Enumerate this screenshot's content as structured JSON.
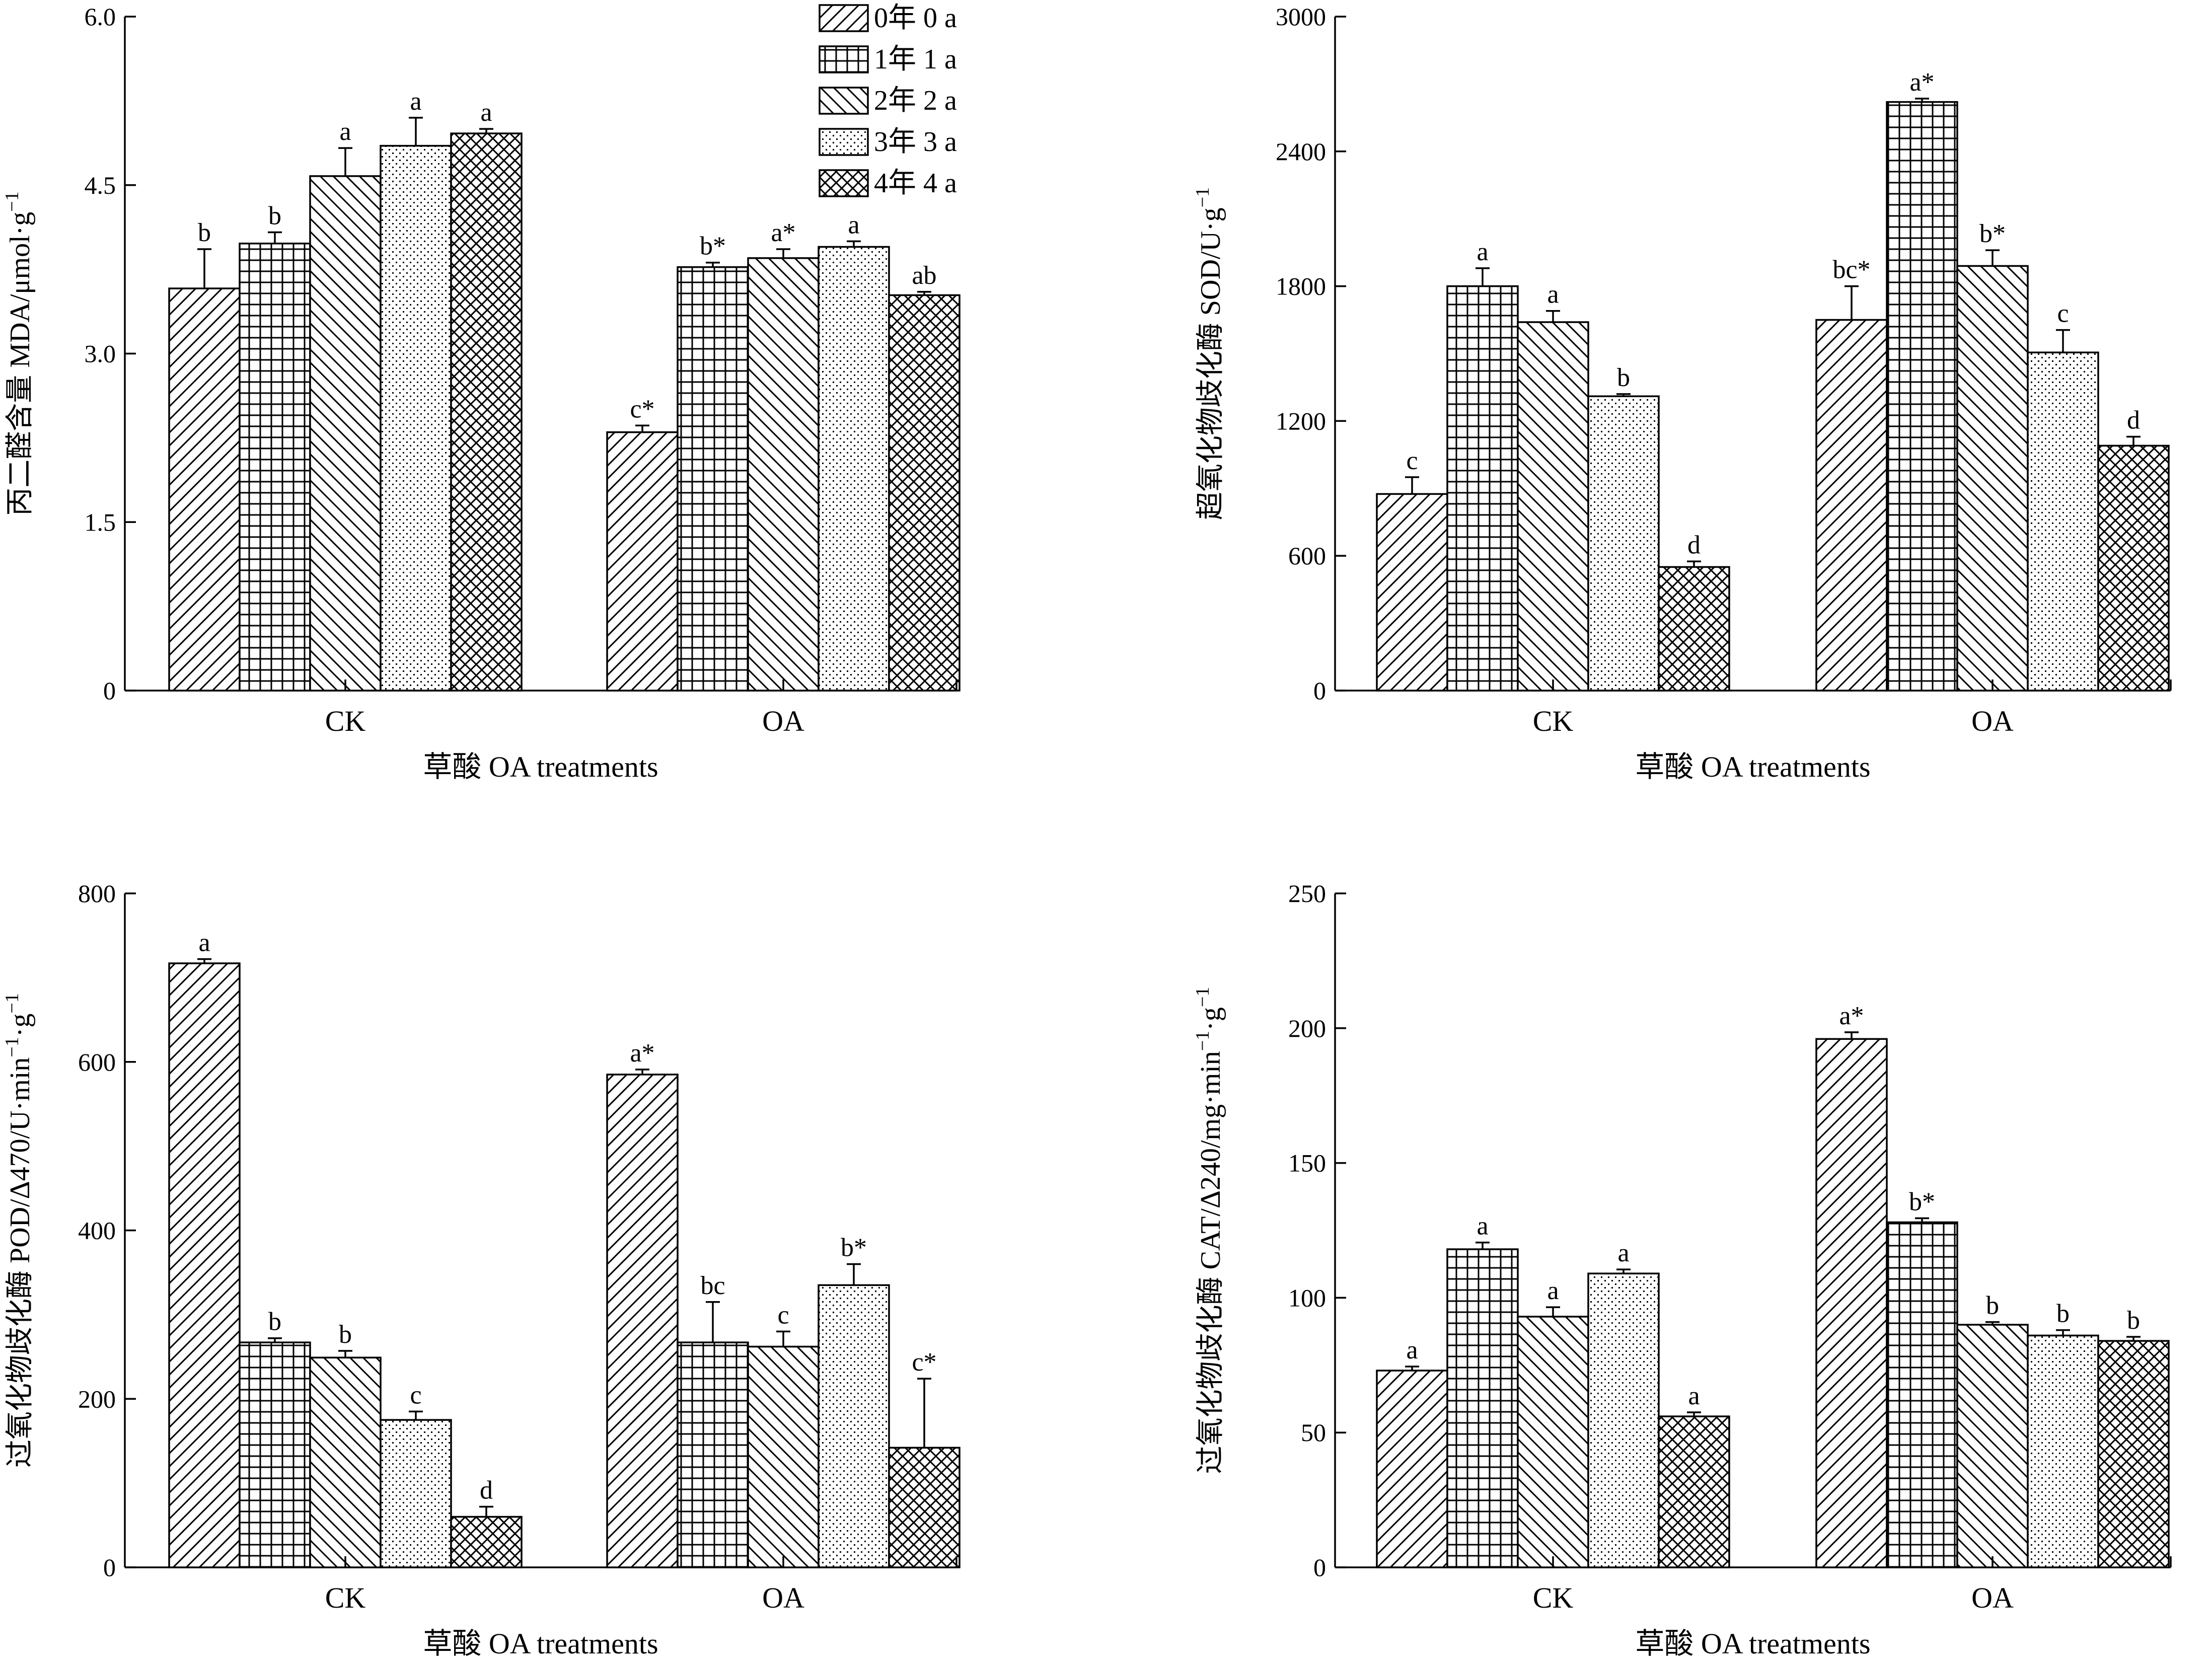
{
  "legend": {
    "items": [
      {
        "label": "0年 0 a",
        "pattern": "diag-up"
      },
      {
        "label": "1年 1 a",
        "pattern": "grid"
      },
      {
        "label": "2年 2 a",
        "pattern": "diag-down"
      },
      {
        "label": "3年 3 a",
        "pattern": "dots"
      },
      {
        "label": "4年 4 a",
        "pattern": "crosshatch"
      }
    ]
  },
  "chart_data": [
    {
      "id": "mda",
      "type": "bar",
      "title": "",
      "xlabel": "草酸 OA treatments",
      "ylabel": "丙二醛含量 MDA/μmol·g",
      "ylabel_sup": "−1",
      "categories": [
        "CK",
        "OA"
      ],
      "ylim": [
        0,
        6.0
      ],
      "yticks": [
        0,
        1.5,
        3.0,
        4.5,
        6.0
      ],
      "ytick_labels": [
        "0",
        "1.5",
        "3.0",
        "4.5",
        "6.0"
      ],
      "series": [
        {
          "name": "0年 0 a",
          "values": [
            3.58,
            2.3
          ],
          "errors": [
            0.35,
            0.06
          ],
          "labels": [
            "b",
            "c*"
          ]
        },
        {
          "name": "1年 1 a",
          "values": [
            3.98,
            3.77
          ],
          "errors": [
            0.1,
            0.04
          ],
          "labels": [
            "b",
            "b*"
          ]
        },
        {
          "name": "2年 2 a",
          "values": [
            4.58,
            3.85
          ],
          "errors": [
            0.25,
            0.08
          ],
          "labels": [
            "a",
            "a*"
          ]
        },
        {
          "name": "3年 3 a",
          "values": [
            4.85,
            3.95
          ],
          "errors": [
            0.25,
            0.05
          ],
          "labels": [
            "a",
            "a"
          ]
        },
        {
          "name": "4年 4 a",
          "values": [
            4.96,
            3.52
          ],
          "errors": [
            0.04,
            0.03
          ],
          "labels": [
            "a",
            "ab"
          ]
        }
      ]
    },
    {
      "id": "sod",
      "type": "bar",
      "title": "",
      "xlabel": "草酸 OA treatments",
      "ylabel": "超氧化物歧化酶 SOD/U·g",
      "ylabel_sup": "−1",
      "categories": [
        "CK",
        "OA"
      ],
      "ylim": [
        0,
        3000
      ],
      "yticks": [
        0,
        600,
        1200,
        1800,
        2400,
        3000
      ],
      "ytick_labels": [
        "0",
        "600",
        "1200",
        "1800",
        "2400",
        "3000"
      ],
      "series": [
        {
          "name": "0年 0 a",
          "values": [
            875,
            1650
          ],
          "errors": [
            75,
            150
          ],
          "labels": [
            "c",
            "bc*"
          ]
        },
        {
          "name": "1年 1 a",
          "values": [
            1800,
            2620
          ],
          "errors": [
            80,
            15
          ],
          "labels": [
            "a",
            "a*"
          ]
        },
        {
          "name": "2年 2 a",
          "values": [
            1640,
            1890
          ],
          "errors": [
            50,
            70
          ],
          "labels": [
            "a",
            "b*"
          ]
        },
        {
          "name": "3年 3 a",
          "values": [
            1310,
            1505
          ],
          "errors": [
            10,
            100
          ],
          "labels": [
            "b",
            "c"
          ]
        },
        {
          "name": "4年 4 a",
          "values": [
            550,
            1090
          ],
          "errors": [
            25,
            40
          ],
          "labels": [
            "d",
            "d"
          ]
        }
      ]
    },
    {
      "id": "pod",
      "type": "bar",
      "title": "",
      "xlabel": "草酸 OA treatments",
      "ylabel": "过氧化物歧化酶 POD/Δ470/U·min",
      "ylabel_sup": "−1",
      "ylabel_tail": "·g",
      "ylabel_sup2": "−1",
      "categories": [
        "CK",
        "OA"
      ],
      "ylim": [
        0,
        800
      ],
      "yticks": [
        0,
        200,
        400,
        600,
        800
      ],
      "ytick_labels": [
        "0",
        "200",
        "400",
        "600",
        "800"
      ],
      "series": [
        {
          "name": "0年 0 a",
          "values": [
            717,
            585
          ],
          "errors": [
            5,
            6
          ],
          "labels": [
            "a",
            "a*"
          ]
        },
        {
          "name": "1年 1 a",
          "values": [
            267,
            267
          ],
          "errors": [
            5,
            48
          ],
          "labels": [
            "b",
            "bc"
          ]
        },
        {
          "name": "2年 2 a",
          "values": [
            249,
            262
          ],
          "errors": [
            8,
            18
          ],
          "labels": [
            "b",
            "c"
          ]
        },
        {
          "name": "3年 3 a",
          "values": [
            175,
            335
          ],
          "errors": [
            10,
            25
          ],
          "labels": [
            "c",
            "b*"
          ]
        },
        {
          "name": "4年 4 a",
          "values": [
            60,
            142
          ],
          "errors": [
            12,
            82
          ],
          "labels": [
            "d",
            "c*"
          ]
        }
      ]
    },
    {
      "id": "cat",
      "type": "bar",
      "title": "",
      "xlabel": "草酸 OA treatments",
      "ylabel": "过氧化物歧化酶 CAT/Δ240/mg·min",
      "ylabel_sup": "−1",
      "ylabel_tail": "·g",
      "ylabel_sup2": "−1",
      "categories": [
        "CK",
        "OA"
      ],
      "ylim": [
        0,
        250
      ],
      "yticks": [
        0,
        50,
        100,
        150,
        200,
        250
      ],
      "ytick_labels": [
        "0",
        "50",
        "100",
        "150",
        "200",
        "250"
      ],
      "series": [
        {
          "name": "0年 0 a",
          "values": [
            73,
            196
          ],
          "errors": [
            1.5,
            2.5
          ],
          "labels": [
            "a",
            "a*"
          ]
        },
        {
          "name": "1年 1 a",
          "values": [
            118,
            128
          ],
          "errors": [
            2.5,
            1.5
          ],
          "labels": [
            "a",
            "b*"
          ]
        },
        {
          "name": "2年 2 a",
          "values": [
            93,
            90
          ],
          "errors": [
            3.5,
            1.0
          ],
          "labels": [
            "a",
            "b"
          ]
        },
        {
          "name": "3年 3 a",
          "values": [
            109,
            86
          ],
          "errors": [
            1.5,
            2.0
          ],
          "labels": [
            "a",
            "b"
          ]
        },
        {
          "name": "4年 4 a",
          "values": [
            56,
            84
          ],
          "errors": [
            1.5,
            1.5
          ],
          "labels": [
            "a",
            "b"
          ]
        }
      ]
    }
  ]
}
